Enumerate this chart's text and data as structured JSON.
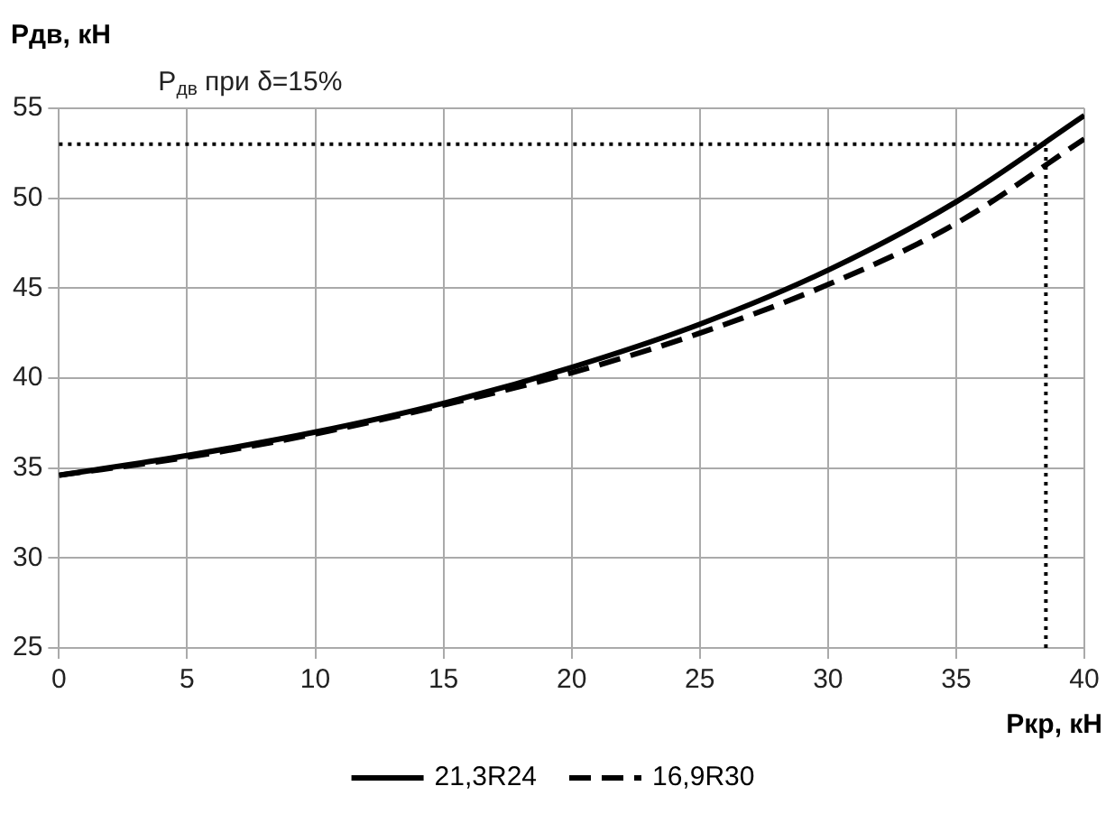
{
  "chart_data": {
    "type": "line",
    "ylabel": "Pдв, кН",
    "xlabel": "Pкр, кН",
    "x": [
      0,
      5,
      10,
      15,
      20,
      25,
      30,
      35,
      40
    ],
    "series": [
      {
        "name": "21,3R24",
        "color": "#000000",
        "line_style": "solid",
        "values": [
          34.6,
          35.7,
          37.0,
          38.6,
          40.6,
          43.0,
          46.0,
          49.8,
          54.6
        ]
      },
      {
        "name": "16,9R30",
        "color": "#000000",
        "line_style": "dashed",
        "values": [
          34.6,
          35.6,
          36.9,
          38.5,
          40.3,
          42.5,
          45.2,
          48.6,
          53.3
        ]
      }
    ],
    "xlim": [
      0,
      40
    ],
    "xticks": [
      0,
      5,
      10,
      15,
      20,
      25,
      30,
      35,
      40
    ],
    "ylim": [
      25,
      55
    ],
    "yticks": [
      25,
      30,
      35,
      40,
      45,
      50,
      55
    ],
    "annotations": [
      "P$_{дв}$ при δ=15%"
    ],
    "grid": true,
    "legend": "bottom",
    "marker": "none",
    "ref_lines": [
      {
        "axis": "y",
        "value": 53,
        "line_style": "dotted",
        "color": "#000000"
      },
      {
        "axis": "x",
        "value": 38.5,
        "line_style": "dotted",
        "color": "#000000"
      }
    ]
  }
}
